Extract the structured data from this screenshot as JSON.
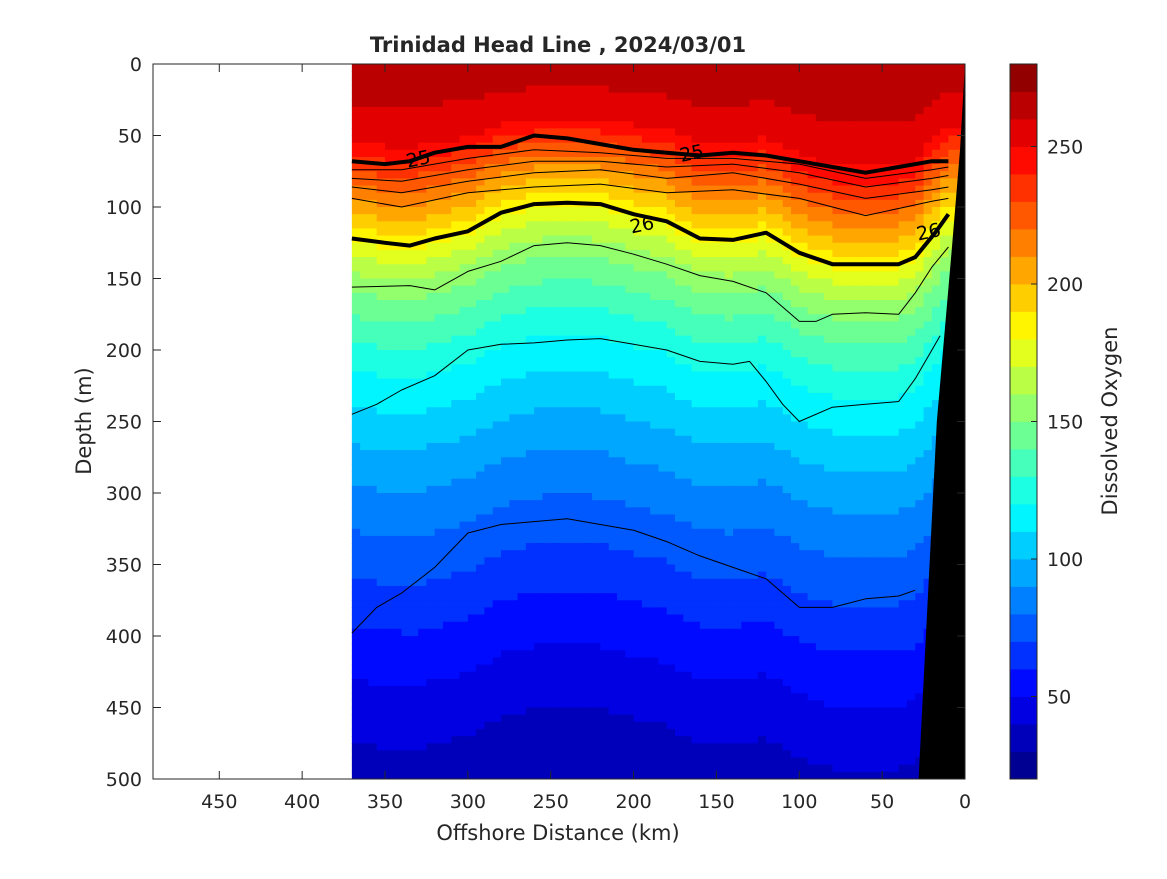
{
  "chart_data": {
    "type": "heatmap",
    "title": "Trinidad Head Line , 2024/03/01",
    "xlabel": "Offshore Distance (km)",
    "ylabel": "Depth (m)",
    "xlim": [
      490,
      0
    ],
    "ylim": [
      0,
      500
    ],
    "x_ticks": [
      450,
      400,
      350,
      300,
      250,
      200,
      150,
      100,
      50,
      0
    ],
    "y_ticks": [
      0,
      50,
      100,
      150,
      200,
      250,
      300,
      350,
      400,
      450,
      500
    ],
    "data_x_range": [
      370,
      0
    ],
    "colorbar": {
      "label": "Dissolved Oxygen",
      "range": [
        20,
        280
      ],
      "step": 10,
      "ticks": [
        50,
        100,
        150,
        200,
        250
      ]
    },
    "oxygen_profile": {
      "depth": [
        0,
        40,
        55,
        65,
        75,
        85,
        95,
        105,
        115,
        125,
        140,
        160,
        185,
        215,
        245,
        280,
        320,
        360,
        400,
        450,
        500
      ],
      "value": [
        265,
        258,
        250,
        240,
        230,
        220,
        210,
        200,
        190,
        180,
        165,
        150,
        135,
        120,
        108,
        95,
        82,
        70,
        58,
        45,
        35
      ]
    },
    "isopycnal_labels": [
      {
        "text": "25",
        "x": 330,
        "y": 66
      },
      {
        "text": "25",
        "x": 165,
        "y": 62
      },
      {
        "text": "26",
        "x": 195,
        "y": 112
      },
      {
        "text": "26",
        "x": 22,
        "y": 117
      }
    ],
    "isopycnals": [
      {
        "name": "25",
        "bold": true,
        "x": [
          370,
          350,
          335,
          320,
          300,
          280,
          260,
          240,
          220,
          200,
          180,
          160,
          140,
          120,
          100,
          80,
          60,
          40,
          20,
          10
        ],
        "y": [
          68,
          70,
          68,
          62,
          58,
          58,
          50,
          52,
          56,
          60,
          62,
          64,
          62,
          64,
          68,
          72,
          76,
          72,
          68,
          68
        ]
      },
      {
        "name": "26",
        "bold": true,
        "x": [
          370,
          350,
          335,
          320,
          300,
          280,
          260,
          240,
          220,
          200,
          180,
          160,
          140,
          120,
          100,
          80,
          60,
          40,
          30,
          18,
          10
        ],
        "y": [
          122,
          125,
          127,
          122,
          117,
          104,
          98,
          97,
          98,
          105,
          110,
          122,
          123,
          118,
          132,
          140,
          140,
          140,
          135,
          118,
          105
        ]
      },
      {
        "name": "25.2",
        "bold": false,
        "x": [
          370,
          340,
          300,
          260,
          220,
          180,
          140,
          100,
          60,
          20,
          10
        ],
        "y": [
          74,
          74,
          66,
          60,
          62,
          66,
          66,
          70,
          80,
          74,
          72
        ]
      },
      {
        "name": "25.4",
        "bold": false,
        "x": [
          370,
          340,
          300,
          260,
          220,
          180,
          140,
          100,
          60,
          20,
          10
        ],
        "y": [
          80,
          82,
          74,
          68,
          68,
          72,
          70,
          76,
          86,
          80,
          78
        ]
      },
      {
        "name": "25.6",
        "bold": false,
        "x": [
          370,
          340,
          300,
          260,
          220,
          180,
          140,
          100,
          60,
          20,
          10
        ],
        "y": [
          86,
          90,
          82,
          76,
          74,
          80,
          76,
          84,
          94,
          88,
          86
        ]
      },
      {
        "name": "25.8",
        "bold": false,
        "x": [
          370,
          340,
          300,
          260,
          220,
          180,
          140,
          100,
          60,
          20,
          10
        ],
        "y": [
          94,
          100,
          90,
          86,
          84,
          90,
          88,
          94,
          106,
          96,
          94
        ]
      },
      {
        "name": "26.2",
        "bold": false,
        "x": [
          370,
          335,
          320,
          300,
          280,
          260,
          240,
          220,
          200,
          180,
          160,
          140,
          120,
          100,
          90,
          80,
          60,
          40,
          30,
          20,
          10
        ],
        "y": [
          156,
          155,
          158,
          145,
          138,
          127,
          125,
          127,
          133,
          140,
          148,
          152,
          160,
          180,
          180,
          175,
          174,
          175,
          160,
          142,
          128
        ]
      },
      {
        "name": "26.4",
        "bold": false,
        "x": [
          370,
          355,
          340,
          320,
          300,
          280,
          260,
          240,
          220,
          200,
          180,
          160,
          140,
          130,
          120,
          110,
          100,
          80,
          60,
          40,
          30,
          20,
          15
        ],
        "y": [
          245,
          238,
          228,
          218,
          200,
          196,
          195,
          193,
          192,
          196,
          200,
          208,
          210,
          208,
          222,
          238,
          250,
          240,
          238,
          236,
          220,
          200,
          190
        ]
      },
      {
        "name": "26.6",
        "bold": false,
        "x": [
          370,
          355,
          340,
          320,
          300,
          280,
          260,
          240,
          220,
          200,
          180,
          160,
          140,
          120,
          100,
          80,
          60,
          40,
          30
        ],
        "y": [
          398,
          380,
          370,
          352,
          328,
          322,
          320,
          318,
          322,
          326,
          334,
          344,
          352,
          360,
          380,
          380,
          374,
          372,
          368
        ]
      }
    ]
  }
}
